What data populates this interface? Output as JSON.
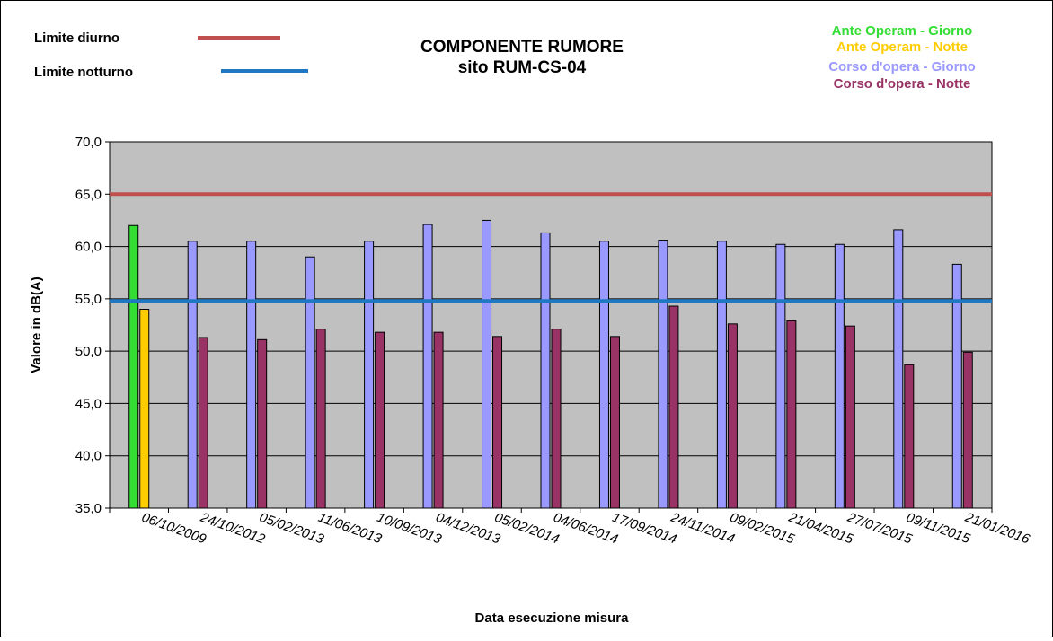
{
  "chart_data": {
    "type": "bar",
    "title_line1": "COMPONENTE RUMORE",
    "title_line2": "sito RUM-CS-04",
    "xlabel": "Data esecuzione misura",
    "ylabel": "Valore in dB(A)",
    "ylim": [
      35,
      70
    ],
    "ytick_step": 5,
    "grid": true,
    "legend_position": "top-right",
    "categories": [
      "06/10/2009",
      "24/10/2012",
      "05/02/2013",
      "11/06/2013",
      "10/09/2013",
      "04/12/2013",
      "05/02/2014",
      "04/06/2014",
      "17/09/2014",
      "24/11/2014",
      "09/02/2015",
      "21/04/2015",
      "27/07/2015",
      "09/11/2015",
      "21/01/2016"
    ],
    "series": [
      {
        "name": "Ante Operam - Giorno",
        "color": "#33dd33",
        "values": [
          62.0,
          null,
          null,
          null,
          null,
          null,
          null,
          null,
          null,
          null,
          null,
          null,
          null,
          null,
          null
        ]
      },
      {
        "name": "Ante Operam - Notte",
        "color": "#ffcc00",
        "values": [
          54.0,
          null,
          null,
          null,
          null,
          null,
          null,
          null,
          null,
          null,
          null,
          null,
          null,
          null,
          null
        ]
      },
      {
        "name": "Corso d'opera - Giorno",
        "color": "#9999ff",
        "values": [
          null,
          60.5,
          60.5,
          59.0,
          60.5,
          62.1,
          62.5,
          61.3,
          60.5,
          60.6,
          60.5,
          60.2,
          60.2,
          61.6,
          58.3
        ]
      },
      {
        "name": "Corso d'opera - Notte",
        "color": "#993366",
        "values": [
          null,
          51.3,
          51.1,
          52.1,
          51.8,
          51.8,
          51.4,
          52.1,
          51.4,
          54.3,
          52.6,
          52.9,
          52.4,
          48.7,
          49.9
        ]
      }
    ],
    "limits": [
      {
        "label": "Limite diurno",
        "value": 65.0,
        "color": "#c0504d"
      },
      {
        "label": "Limite notturno",
        "value": 54.8,
        "color": "#1f78c1"
      }
    ],
    "plot_background": "#c0c0c0"
  }
}
